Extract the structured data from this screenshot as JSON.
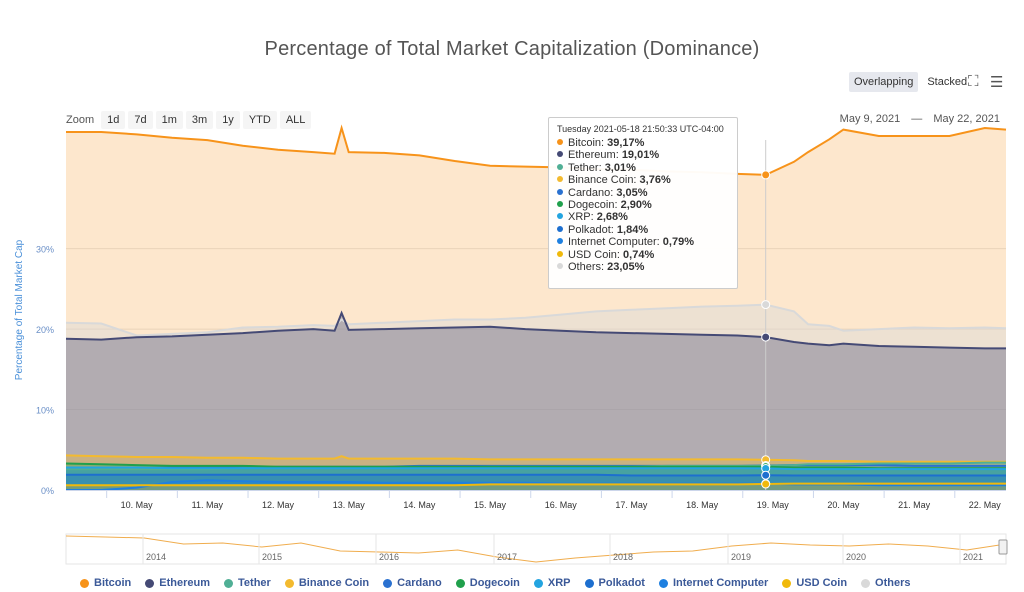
{
  "title": "Percentage of Total Market Capitalization (Dominance)",
  "toolbar": {
    "overlapping_label": "Overlapping",
    "stacked_label": "Stacked",
    "expand_icon": "expand-icon",
    "menu_icon": "menu-icon"
  },
  "zoom": {
    "label": "Zoom",
    "buttons": [
      "1d",
      "7d",
      "1m",
      "3m",
      "1y",
      "YTD",
      "ALL"
    ]
  },
  "range": {
    "from": "May 9, 2021",
    "sep": "—",
    "to": "May 22, 2021"
  },
  "tooltip": {
    "date": "Tuesday 2021-05-18 21:50:33 UTC-04:00",
    "rows": [
      {
        "name": "Bitcoin",
        "value": "39,17%",
        "color": "#f7931a"
      },
      {
        "name": "Ethereum",
        "value": "19,01%",
        "color": "#454a75"
      },
      {
        "name": "Tether",
        "value": "3,01%",
        "color": "#50af95"
      },
      {
        "name": "Binance Coin",
        "value": "3,76%",
        "color": "#f3ba2f"
      },
      {
        "name": "Cardano",
        "value": "3,05%",
        "color": "#2a71d0"
      },
      {
        "name": "Dogecoin",
        "value": "2,90%",
        "color": "#20a04c"
      },
      {
        "name": "XRP",
        "value": "2,68%",
        "color": "#23a4e0"
      },
      {
        "name": "Polkadot",
        "value": "1,84%",
        "color": "#1d6fcf"
      },
      {
        "name": "Internet Computer",
        "value": "0,79%",
        "color": "#1f80e0"
      },
      {
        "name": "USD Coin",
        "value": "0,74%",
        "color": "#f0b90b"
      },
      {
        "name": "Others",
        "value": "23,05%",
        "color": "#d9d9d9"
      }
    ]
  },
  "navigator": {
    "years": [
      "2014",
      "2015",
      "2016",
      "2017",
      "2018",
      "2019",
      "2020",
      "2021"
    ]
  },
  "chart_data": {
    "type": "area",
    "ylabel": "Percentage of Total Market Cap",
    "ylim": [
      0,
      45
    ],
    "yticks": [
      0,
      10,
      20,
      30
    ],
    "ytick_labels": [
      "0%",
      "10%",
      "20%",
      "30%"
    ],
    "xlim": [
      9.0,
      22.3
    ],
    "xticks": [
      10,
      11,
      12,
      13,
      14,
      15,
      16,
      17,
      18,
      19,
      20,
      21,
      22
    ],
    "xtick_labels": [
      "10. May",
      "11. May",
      "12. May",
      "13. May",
      "14. May",
      "15. May",
      "16. May",
      "17. May",
      "18. May",
      "19. May",
      "20. May",
      "21. May",
      "22. May"
    ],
    "grid": true,
    "crosshair_x": 18.9,
    "x": [
      9.0,
      9.5,
      10.0,
      10.5,
      11.0,
      11.5,
      12.0,
      12.5,
      12.8,
      12.9,
      13.0,
      13.5,
      14.0,
      14.5,
      15.0,
      15.5,
      16.0,
      16.5,
      17.0,
      17.5,
      18.0,
      18.5,
      18.9,
      19.3,
      19.5,
      19.8,
      20.0,
      20.5,
      21.0,
      21.5,
      22.0,
      22.3
    ],
    "series": [
      {
        "name": "Bitcoin",
        "color": "#f7931a",
        "values": [
          44.5,
          44.5,
          44.2,
          43.8,
          43.5,
          42.8,
          42.3,
          42.0,
          41.8,
          45.0,
          42.0,
          41.9,
          41.6,
          40.9,
          40.3,
          40.2,
          40.1,
          39.9,
          39.8,
          39.6,
          39.5,
          39.3,
          39.17,
          40.8,
          42.0,
          43.6,
          44.8,
          44.0,
          44.0,
          44.0,
          45.0,
          44.8
        ]
      },
      {
        "name": "Others",
        "color": "#d9d9d9",
        "values": [
          20.8,
          20.7,
          19.2,
          19.4,
          19.6,
          20.2,
          20.3,
          20.5,
          20.4,
          21.2,
          20.6,
          20.8,
          21.0,
          21.2,
          21.2,
          21.4,
          21.8,
          22.2,
          22.4,
          22.6,
          22.8,
          22.9,
          23.05,
          22.2,
          20.6,
          20.4,
          19.8,
          20.0,
          20.2,
          20.1,
          20.2,
          20.1
        ]
      },
      {
        "name": "Ethereum",
        "color": "#454a75",
        "values": [
          18.8,
          18.7,
          19.0,
          19.1,
          19.3,
          19.5,
          19.8,
          20.0,
          19.8,
          22.0,
          19.9,
          20.0,
          20.1,
          20.2,
          20.3,
          20.0,
          19.8,
          19.6,
          19.5,
          19.4,
          19.3,
          19.2,
          19.01,
          18.4,
          18.2,
          18.0,
          18.2,
          17.9,
          17.8,
          17.7,
          17.6,
          17.6
        ]
      },
      {
        "name": "Binance Coin",
        "color": "#f3ba2f",
        "values": [
          4.3,
          4.2,
          4.1,
          4.1,
          4.0,
          4.0,
          3.9,
          3.9,
          3.9,
          4.2,
          3.9,
          3.9,
          3.9,
          3.9,
          3.8,
          3.8,
          3.8,
          3.8,
          3.8,
          3.8,
          3.8,
          3.8,
          3.76,
          3.7,
          3.6,
          3.6,
          3.6,
          3.5,
          3.5,
          3.5,
          3.5,
          3.5
        ]
      },
      {
        "name": "Cardano",
        "color": "#2a71d0",
        "values": [
          2.7,
          2.7,
          2.7,
          2.8,
          2.8,
          2.8,
          2.9,
          2.9,
          2.9,
          2.9,
          2.9,
          2.9,
          3.0,
          3.0,
          3.0,
          3.0,
          3.0,
          3.0,
          3.0,
          3.0,
          3.0,
          3.0,
          3.05,
          3.1,
          3.1,
          3.1,
          3.1,
          3.1,
          3.0,
          3.0,
          3.0,
          3.0
        ]
      },
      {
        "name": "Tether",
        "color": "#50af95",
        "values": [
          2.6,
          2.6,
          2.6,
          2.6,
          2.6,
          2.7,
          2.7,
          2.7,
          2.8,
          2.8,
          2.8,
          2.8,
          2.8,
          2.8,
          2.9,
          2.9,
          2.9,
          2.9,
          2.9,
          3.0,
          3.0,
          3.0,
          3.01,
          3.1,
          3.2,
          3.2,
          3.2,
          3.3,
          3.3,
          3.3,
          3.4,
          3.4
        ]
      },
      {
        "name": "Dogecoin",
        "color": "#20a04c",
        "values": [
          3.3,
          3.2,
          3.1,
          3.0,
          3.0,
          3.0,
          2.9,
          2.9,
          2.9,
          2.9,
          2.9,
          2.9,
          2.9,
          2.9,
          2.9,
          2.9,
          2.9,
          2.9,
          2.9,
          2.9,
          2.9,
          2.9,
          2.9,
          2.8,
          2.8,
          2.8,
          2.8,
          2.7,
          2.7,
          2.7,
          2.7,
          2.7
        ]
      },
      {
        "name": "XRP",
        "color": "#23a4e0",
        "values": [
          2.8,
          2.8,
          2.8,
          2.7,
          2.7,
          2.7,
          2.7,
          2.7,
          2.7,
          2.7,
          2.7,
          2.7,
          2.7,
          2.7,
          2.7,
          2.7,
          2.7,
          2.7,
          2.7,
          2.7,
          2.7,
          2.7,
          2.68,
          2.6,
          2.6,
          2.6,
          2.6,
          2.6,
          2.6,
          2.6,
          2.6,
          2.6
        ]
      },
      {
        "name": "Polkadot",
        "color": "#1d6fcf",
        "values": [
          1.9,
          1.9,
          1.9,
          1.9,
          1.9,
          1.9,
          1.9,
          1.9,
          1.9,
          1.9,
          1.9,
          1.9,
          1.9,
          1.9,
          1.9,
          1.9,
          1.9,
          1.9,
          1.8,
          1.8,
          1.8,
          1.8,
          1.84,
          1.8,
          1.8,
          1.8,
          1.8,
          1.8,
          1.8,
          1.8,
          1.8,
          1.8
        ]
      },
      {
        "name": "Internet Computer",
        "color": "#1f80e0",
        "values": [
          0,
          0,
          0.3,
          1.0,
          1.2,
          1.1,
          1.0,
          1.0,
          1.0,
          1.0,
          1.0,
          0.9,
          0.9,
          0.9,
          0.9,
          0.9,
          0.8,
          0.8,
          0.8,
          0.8,
          0.8,
          0.8,
          0.79,
          0.7,
          0.7,
          0.7,
          0.7,
          0.6,
          0.6,
          0.6,
          0.6,
          0.6
        ]
      },
      {
        "name": "USD Coin",
        "color": "#f0b90b",
        "values": [
          0.6,
          0.6,
          0.6,
          0.6,
          0.6,
          0.6,
          0.6,
          0.6,
          0.6,
          0.6,
          0.6,
          0.6,
          0.6,
          0.6,
          0.7,
          0.7,
          0.7,
          0.7,
          0.7,
          0.7,
          0.7,
          0.7,
          0.74,
          0.8,
          0.8,
          0.8,
          0.8,
          0.8,
          0.8,
          0.8,
          0.8,
          0.8
        ]
      }
    ]
  }
}
